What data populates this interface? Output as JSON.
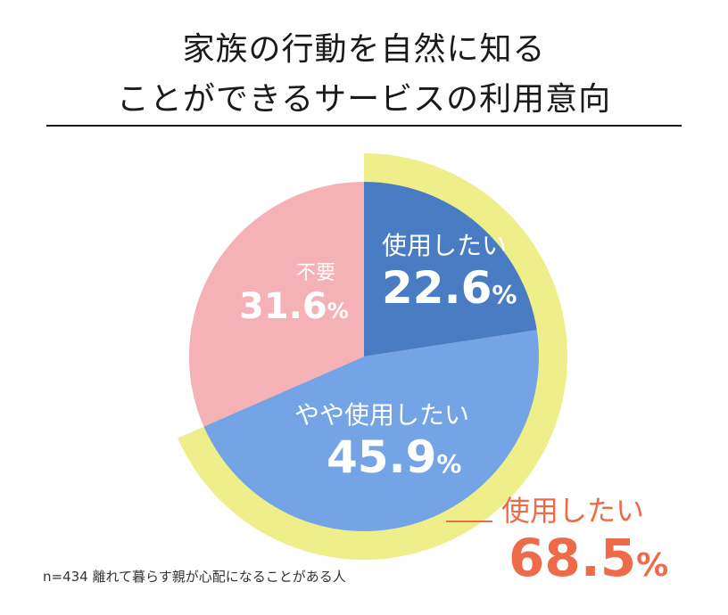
{
  "title_line1": "家族の行動を自然に知る",
  "title_line2": "ことができるサービスの利用意向",
  "chart_data": {
    "type": "pie",
    "title": "家族の行動を自然に知ることができるサービスの利用意向",
    "slices": [
      {
        "label": "使用したい",
        "value": 22.6,
        "value_text": "22.6",
        "color": "#4a7cc4"
      },
      {
        "label": "やや使用したい",
        "value": 45.9,
        "value_text": "45.9",
        "color": "#74a4e6"
      },
      {
        "label": "不要",
        "value": 31.6,
        "value_text": "31.6",
        "color": "#f4b1b6"
      }
    ],
    "highlight_ring_color": "#eeee8a",
    "total": {
      "label": "使用したい",
      "value": 68.5,
      "value_text": "68.5"
    }
  },
  "percent_sign": "%",
  "footnote": "n=434 離れて暮らす親が心配になることがある人"
}
